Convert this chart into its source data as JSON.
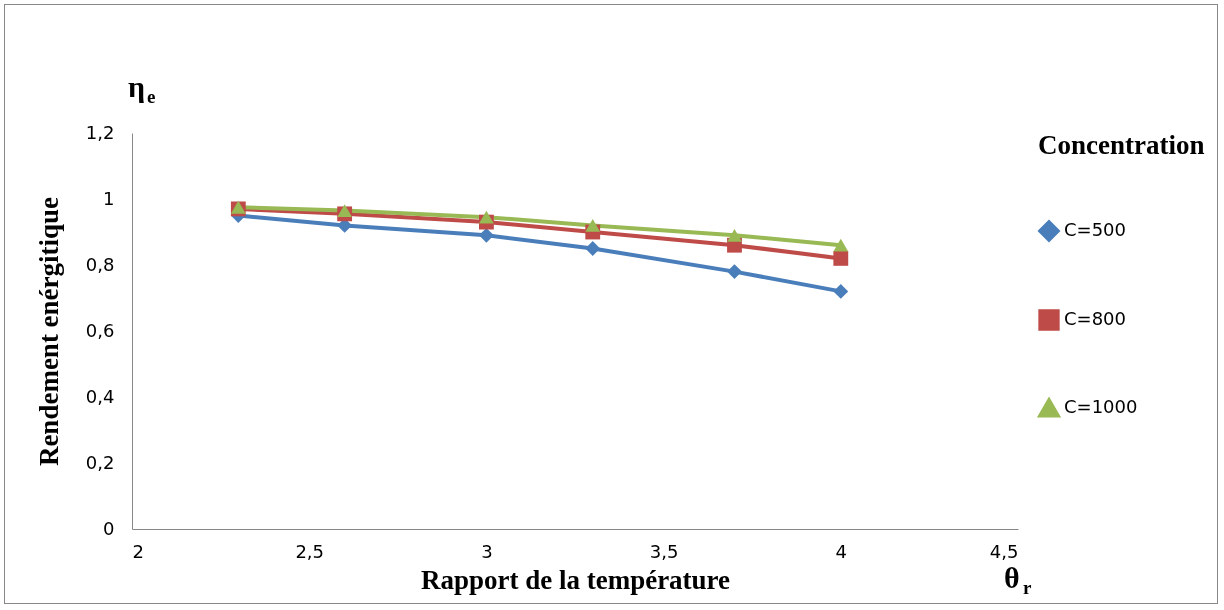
{
  "chart_data": {
    "type": "line",
    "xlabel": "Rapport de la température",
    "ylabel": "Rendement enérgitique",
    "legend_title": "Concentration",
    "annotations": [
      "η$_{e}$",
      "θ$_{r}$"
    ],
    "x": [
      2.3,
      2.6,
      3,
      3.3,
      3.7,
      4
    ],
    "xlim": [
      2,
      4.5
    ],
    "xticks": [
      {
        "value": 2,
        "label": "2"
      },
      {
        "value": 2.5,
        "label": "2,5"
      },
      {
        "value": 3,
        "label": "3"
      },
      {
        "value": 3.5,
        "label": "3,5"
      },
      {
        "value": 4,
        "label": "4"
      },
      {
        "value": 4.5,
        "label": "4,5"
      }
    ],
    "ylim": [
      0,
      1.2
    ],
    "yticks": [
      {
        "value": 0,
        "label": "0"
      },
      {
        "value": 0.2,
        "label": "0,2"
      },
      {
        "value": 0.4,
        "label": "0,4"
      },
      {
        "value": 0.6,
        "label": "0,6"
      },
      {
        "value": 0.8,
        "label": "0,8"
      },
      {
        "value": 1,
        "label": "1"
      },
      {
        "value": 1.2,
        "label": "1,2"
      }
    ],
    "grid": false,
    "legend": "right",
    "line_style": "solid",
    "series": [
      {
        "name": "C=500",
        "color": "#4a7ebb",
        "marker": "diamond",
        "values": [
          0.95,
          0.92,
          0.89,
          0.85,
          0.78,
          0.72
        ]
      },
      {
        "name": "C=800",
        "color": "#be4b48",
        "marker": "square",
        "values": [
          0.97,
          0.955,
          0.93,
          0.9,
          0.86,
          0.82
        ]
      },
      {
        "name": "C=1000",
        "color": "#98b954",
        "marker": "triangle",
        "values": [
          0.975,
          0.965,
          0.945,
          0.92,
          0.89,
          0.86
        ]
      }
    ]
  }
}
